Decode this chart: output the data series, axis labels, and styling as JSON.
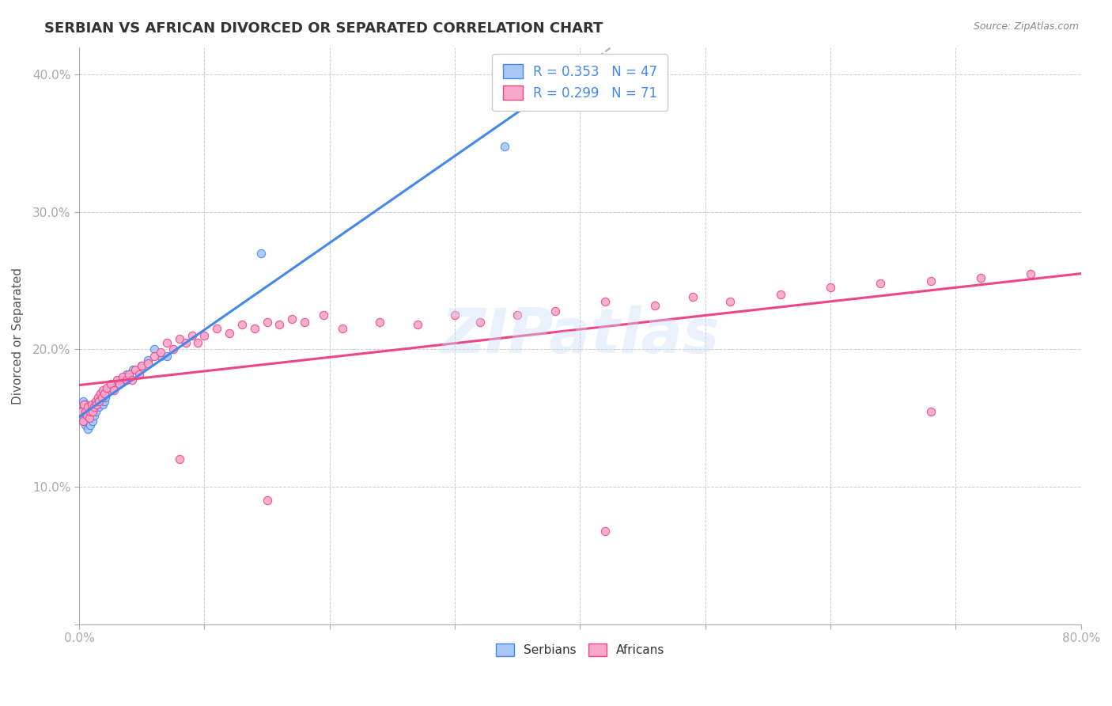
{
  "title": "SERBIAN VS AFRICAN DIVORCED OR SEPARATED CORRELATION CHART",
  "source_text": "Source: ZipAtlas.com",
  "ylabel": "Divorced or Separated",
  "xlim": [
    0.0,
    0.8
  ],
  "ylim": [
    0.0,
    0.42
  ],
  "x_ticks": [
    0.0,
    0.1,
    0.2,
    0.3,
    0.4,
    0.5,
    0.6,
    0.7,
    0.8
  ],
  "y_ticks": [
    0.0,
    0.1,
    0.2,
    0.3,
    0.4
  ],
  "x_tick_labels": [
    "0.0%",
    "",
    "",
    "",
    "",
    "",
    "",
    "",
    "80.0%"
  ],
  "y_tick_labels": [
    "",
    "10.0%",
    "20.0%",
    "30.0%",
    "40.0%"
  ],
  "legend_R1": "0.353",
  "legend_N1": "47",
  "legend_R2": "0.299",
  "legend_N2": "71",
  "color_serbian": "#a8c8f8",
  "color_african": "#f8a8c8",
  "color_line_serbian": "#4488ee",
  "color_line_african": "#ee4488",
  "color_trend_dashed": "#aaaaaa",
  "watermark": "ZIPatlas",
  "serbian_x": [
    0.002,
    0.003,
    0.003,
    0.004,
    0.004,
    0.005,
    0.005,
    0.005,
    0.006,
    0.006,
    0.007,
    0.007,
    0.008,
    0.008,
    0.009,
    0.009,
    0.01,
    0.01,
    0.011,
    0.011,
    0.012,
    0.012,
    0.013,
    0.014,
    0.015,
    0.016,
    0.017,
    0.018,
    0.019,
    0.02,
    0.021,
    0.022,
    0.025,
    0.027,
    0.03,
    0.032,
    0.035,
    0.038,
    0.04,
    0.043,
    0.05,
    0.055,
    0.06,
    0.065,
    0.07,
    0.145,
    0.34
  ],
  "serbian_y": [
    0.155,
    0.148,
    0.162,
    0.15,
    0.158,
    0.145,
    0.152,
    0.16,
    0.148,
    0.155,
    0.142,
    0.15,
    0.148,
    0.155,
    0.145,
    0.152,
    0.15,
    0.158,
    0.148,
    0.155,
    0.152,
    0.16,
    0.155,
    0.158,
    0.162,
    0.158,
    0.162,
    0.165,
    0.16,
    0.162,
    0.165,
    0.168,
    0.17,
    0.172,
    0.175,
    0.178,
    0.178,
    0.182,
    0.18,
    0.185,
    0.188,
    0.192,
    0.2,
    0.195,
    0.195,
    0.27,
    0.348
  ],
  "african_x": [
    0.002,
    0.003,
    0.004,
    0.005,
    0.006,
    0.007,
    0.008,
    0.009,
    0.01,
    0.011,
    0.012,
    0.013,
    0.014,
    0.015,
    0.016,
    0.017,
    0.018,
    0.019,
    0.02,
    0.022,
    0.025,
    0.028,
    0.03,
    0.032,
    0.035,
    0.038,
    0.04,
    0.042,
    0.045,
    0.048,
    0.05,
    0.055,
    0.06,
    0.065,
    0.07,
    0.075,
    0.08,
    0.085,
    0.09,
    0.095,
    0.1,
    0.11,
    0.12,
    0.13,
    0.14,
    0.15,
    0.16,
    0.17,
    0.18,
    0.195,
    0.21,
    0.24,
    0.27,
    0.3,
    0.32,
    0.35,
    0.38,
    0.42,
    0.46,
    0.49,
    0.52,
    0.56,
    0.6,
    0.64,
    0.68,
    0.72,
    0.76,
    0.08,
    0.15,
    0.42,
    0.68
  ],
  "african_y": [
    0.155,
    0.148,
    0.16,
    0.155,
    0.152,
    0.158,
    0.15,
    0.155,
    0.16,
    0.155,
    0.158,
    0.162,
    0.16,
    0.165,
    0.162,
    0.168,
    0.165,
    0.17,
    0.168,
    0.172,
    0.175,
    0.17,
    0.178,
    0.175,
    0.18,
    0.178,
    0.182,
    0.178,
    0.185,
    0.182,
    0.188,
    0.19,
    0.195,
    0.198,
    0.205,
    0.2,
    0.208,
    0.205,
    0.21,
    0.205,
    0.21,
    0.215,
    0.212,
    0.218,
    0.215,
    0.22,
    0.218,
    0.222,
    0.22,
    0.225,
    0.215,
    0.22,
    0.218,
    0.225,
    0.22,
    0.225,
    0.228,
    0.235,
    0.232,
    0.238,
    0.235,
    0.24,
    0.245,
    0.248,
    0.25,
    0.252,
    0.255,
    0.12,
    0.09,
    0.068,
    0.155
  ]
}
